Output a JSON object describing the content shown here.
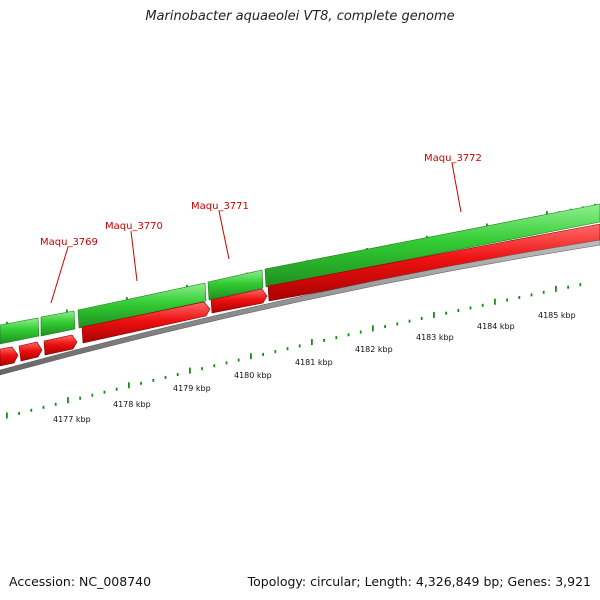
{
  "title": "Marinobacter aquaeolei VT8, complete genome",
  "footer": {
    "accession": "Accession: NC_008740",
    "summary": "Topology: circular; Length: 4,326,849 bp; Genes: 3,921"
  },
  "colors": {
    "forward_strand": "#33cc33",
    "forward_strand_dark": "#1e8a1e",
    "reverse_strand": "#ee1111",
    "backbone": "#808080",
    "tick": "#1a8a1a",
    "gene_label": "#cc0000"
  },
  "genes": [
    {
      "label": "Maqu_3769"
    },
    {
      "label": "Maqu_3770"
    },
    {
      "label": "Maqu_3771"
    },
    {
      "label": "Maqu_3772"
    }
  ],
  "kbp_ticks": [
    "4177 kbp",
    "4178 kbp",
    "4179 kbp",
    "4180 kbp",
    "4181 kbp",
    "4182 kbp",
    "4183 kbp",
    "4184 kbp",
    "4185 kbp"
  ]
}
